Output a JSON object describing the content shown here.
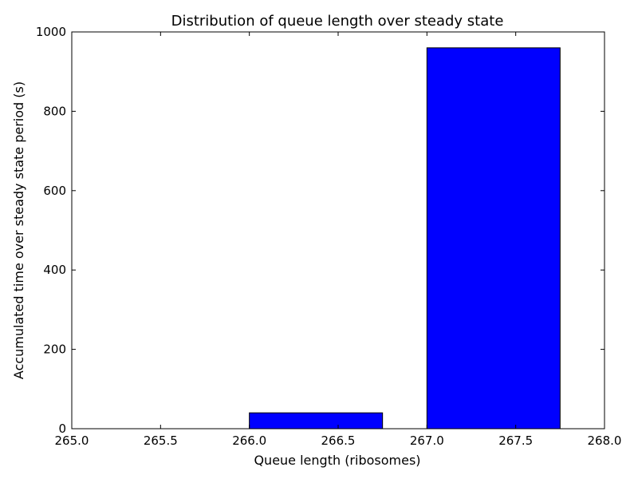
{
  "chart_data": {
    "type": "bar",
    "title": "Distribution of queue length over steady state",
    "xlabel": "Queue length (ribosomes)",
    "ylabel": "Accumulated time over steady state period (s)",
    "xlim": [
      265.0,
      268.0
    ],
    "ylim": [
      0,
      1000
    ],
    "xticks": [
      "265.0",
      "265.5",
      "266.0",
      "266.5",
      "267.0",
      "267.5",
      "268.0"
    ],
    "yticks": [
      "0",
      "200",
      "400",
      "600",
      "800",
      "1000"
    ],
    "bars": [
      {
        "x": 265.0,
        "width": 0.75,
        "value": 0
      },
      {
        "x": 266.0,
        "width": 0.75,
        "value": 40
      },
      {
        "x": 267.0,
        "width": 0.75,
        "value": 960
      }
    ],
    "bar_color": "#0000ff",
    "grid": false
  }
}
